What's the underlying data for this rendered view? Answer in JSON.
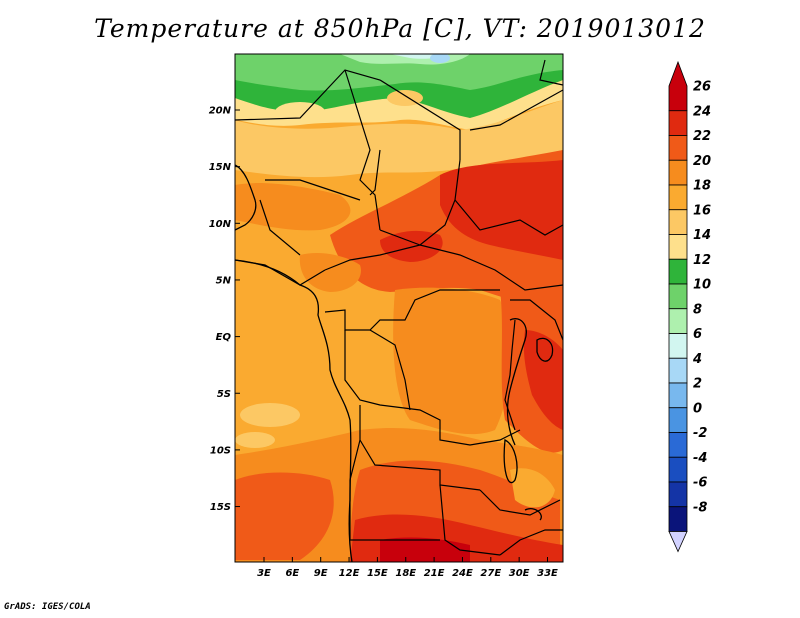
{
  "title": "Temperature at 850hPa [C], VT: 2019013012",
  "credit": "GrADS: IGES/COLA",
  "map": {
    "lat_ticks": [
      {
        "label": "20N",
        "lat": 20
      },
      {
        "label": "15N",
        "lat": 15
      },
      {
        "label": "10N",
        "lat": 10
      },
      {
        "label": "5N",
        "lat": 5
      },
      {
        "label": "EQ",
        "lat": 0
      },
      {
        "label": "5S",
        "lat": -5
      },
      {
        "label": "10S",
        "lat": -10
      },
      {
        "label": "15S",
        "lat": -15
      }
    ],
    "lon_ticks": [
      {
        "label": "3E",
        "lon": 3
      },
      {
        "label": "6E",
        "lon": 6
      },
      {
        "label": "9E",
        "lon": 9
      },
      {
        "label": "12E",
        "lon": 12
      },
      {
        "label": "15E",
        "lon": 15
      },
      {
        "label": "18E",
        "lon": 18
      },
      {
        "label": "21E",
        "lon": 21
      },
      {
        "label": "24E",
        "lon": 24
      },
      {
        "label": "27E",
        "lon": 27
      },
      {
        "label": "30E",
        "lon": 30
      },
      {
        "label": "33E",
        "lon": 33
      }
    ]
  },
  "colorbar": {
    "levels": [
      {
        "label": "26",
        "color": "#c8000c"
      },
      {
        "label": "24",
        "color": "#e02a10"
      },
      {
        "label": "22",
        "color": "#f05a18"
      },
      {
        "label": "20",
        "color": "#f68c1e"
      },
      {
        "label": "18",
        "color": "#faaa30"
      },
      {
        "label": "16",
        "color": "#fcc864"
      },
      {
        "label": "14",
        "color": "#fee08c"
      },
      {
        "label": "12",
        "color": "#2fb43a"
      },
      {
        "label": "10",
        "color": "#6ed26a"
      },
      {
        "label": "8",
        "color": "#aef0ae"
      },
      {
        "label": "6",
        "color": "#d2f6f0"
      },
      {
        "label": "4",
        "color": "#a8d8f6"
      },
      {
        "label": "2",
        "color": "#78b8ee"
      },
      {
        "label": "0",
        "color": "#4a94e2"
      },
      {
        "label": "-2",
        "color": "#2a6ad6"
      },
      {
        "label": "-4",
        "color": "#1a4ec0"
      },
      {
        "label": "-6",
        "color": "#1434a6"
      },
      {
        "label": "-8",
        "color": "#0a147a"
      }
    ],
    "bottom_color": "#d2d2ff"
  }
}
